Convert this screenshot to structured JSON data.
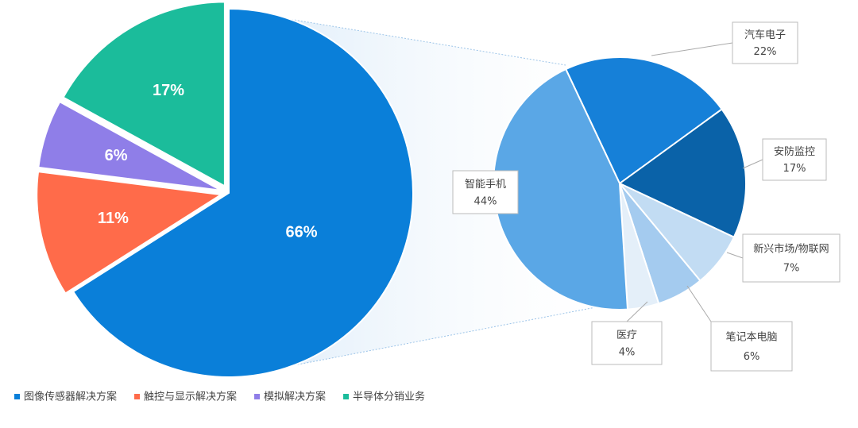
{
  "chart_data": [
    {
      "type": "pie",
      "categories": [
        "图像传感器解决方案",
        "触控与显示解决方案",
        "模拟解决方案",
        "半导体分销业务"
      ],
      "values": [
        66,
        11,
        6,
        17
      ],
      "value_labels": [
        "66%",
        "11%",
        "6%",
        "17%"
      ],
      "colors": [
        "#0a7fd9",
        "#ff6b4a",
        "#8f7ee8",
        "#1bbc9b"
      ],
      "legend": "bottom"
    },
    {
      "type": "pie",
      "categories": [
        "汽车电子",
        "安防监控",
        "新兴市场/物联网",
        "笔记本电脑",
        "医疗",
        "智能手机"
      ],
      "values": [
        22,
        17,
        7,
        6,
        4,
        44
      ],
      "value_labels": [
        "22%",
        "17%",
        "7%",
        "6%",
        "4%",
        "44%"
      ],
      "colors": [
        "#1680d8",
        "#0a62a8",
        "#c2dcf3",
        "#a4cbef",
        "#e4eff9",
        "#5aa7e6"
      ]
    }
  ]
}
